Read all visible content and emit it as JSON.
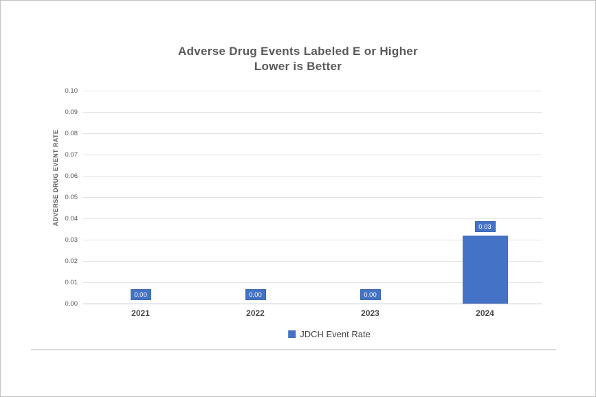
{
  "chart_data": {
    "type": "bar",
    "title": "Adverse Drug Events Labeled E or Higher",
    "subtitle": "Lower is Better",
    "categories": [
      "2021",
      "2022",
      "2023",
      "2024"
    ],
    "series": [
      {
        "name": "JDCH Event Rate",
        "values": [
          0.0,
          0.0,
          0.0,
          0.032
        ],
        "data_labels": [
          "0.00",
          "0.00",
          "0.00",
          "0.03"
        ]
      }
    ],
    "xlabel": "",
    "ylabel": "ADVERSE DRUG EVENT RATE",
    "ylim": [
      0.0,
      0.1
    ],
    "yticks": [
      "0.00",
      "0.01",
      "0.02",
      "0.03",
      "0.04",
      "0.05",
      "0.06",
      "0.07",
      "0.08",
      "0.09",
      "0.10"
    ],
    "grid": true,
    "legend_position": "bottom",
    "colors": {
      "bar": "#4472C4",
      "data_label_bg": "#4472C4",
      "data_label_text": "#ffffff",
      "title_text": "#595959",
      "axis_text": "#595959",
      "gridline": "#e2e2e2"
    }
  }
}
